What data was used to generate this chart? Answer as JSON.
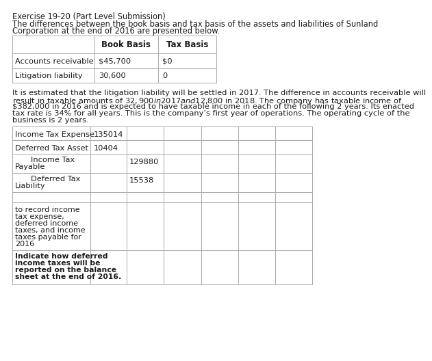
{
  "title": "Exercise 19-20 (Part Level Submission)",
  "intro_line1": "The differences between the book basis and tax basis of the assets and liabilities of Sunland",
  "intro_line2": "Corporation at the end of 2016 are presented below.",
  "top_table_headers": [
    "",
    "Book Basis",
    "Tax Basis"
  ],
  "top_table_rows": [
    [
      "Accounts receivable",
      "$45,700",
      "$0"
    ],
    [
      "Litigation liability",
      "30,600",
      "0"
    ]
  ],
  "paragraph_lines": [
    "It is estimated that the litigation liability will be settled in 2017. The difference in accounts receivable will",
    "result in taxable amounts of $32,900 in 2017 and $12,800 in 2018. The company has taxable income of",
    "$382,000 in 2016 and is expected to have taxable income in each of the following 2 years. Its enacted",
    "tax rate is 34% for all years. This is the company’s first year of operations. The operating cycle of the",
    "business is 2 years."
  ],
  "journal_rows": [
    {
      "label": "Income Tax Expense",
      "indent": false,
      "debit": "135014",
      "credit": ""
    },
    {
      "label": "Deferred Tax Asset",
      "indent": false,
      "debit": "10404",
      "credit": ""
    },
    {
      "label": "Income Tax\nPayable",
      "indent": true,
      "debit": "",
      "credit": "129880"
    },
    {
      "label": "Deferred Tax\nLiability",
      "indent": true,
      "debit": "",
      "credit": "15538"
    },
    {
      "label": "",
      "indent": false,
      "debit": "",
      "credit": ""
    }
  ],
  "note1_lines": [
    "to record income",
    "tax expense,",
    "deferred income",
    "taxes, and income",
    "taxes payable for",
    "2016"
  ],
  "note2_lines": [
    "Indicate how deferred",
    "income taxes will be",
    "reported on the balance",
    "sheet at the end of 2016."
  ],
  "bg_color": "#ffffff",
  "text_color": "#1a1a1a",
  "grid_color": "#aaaaaa"
}
